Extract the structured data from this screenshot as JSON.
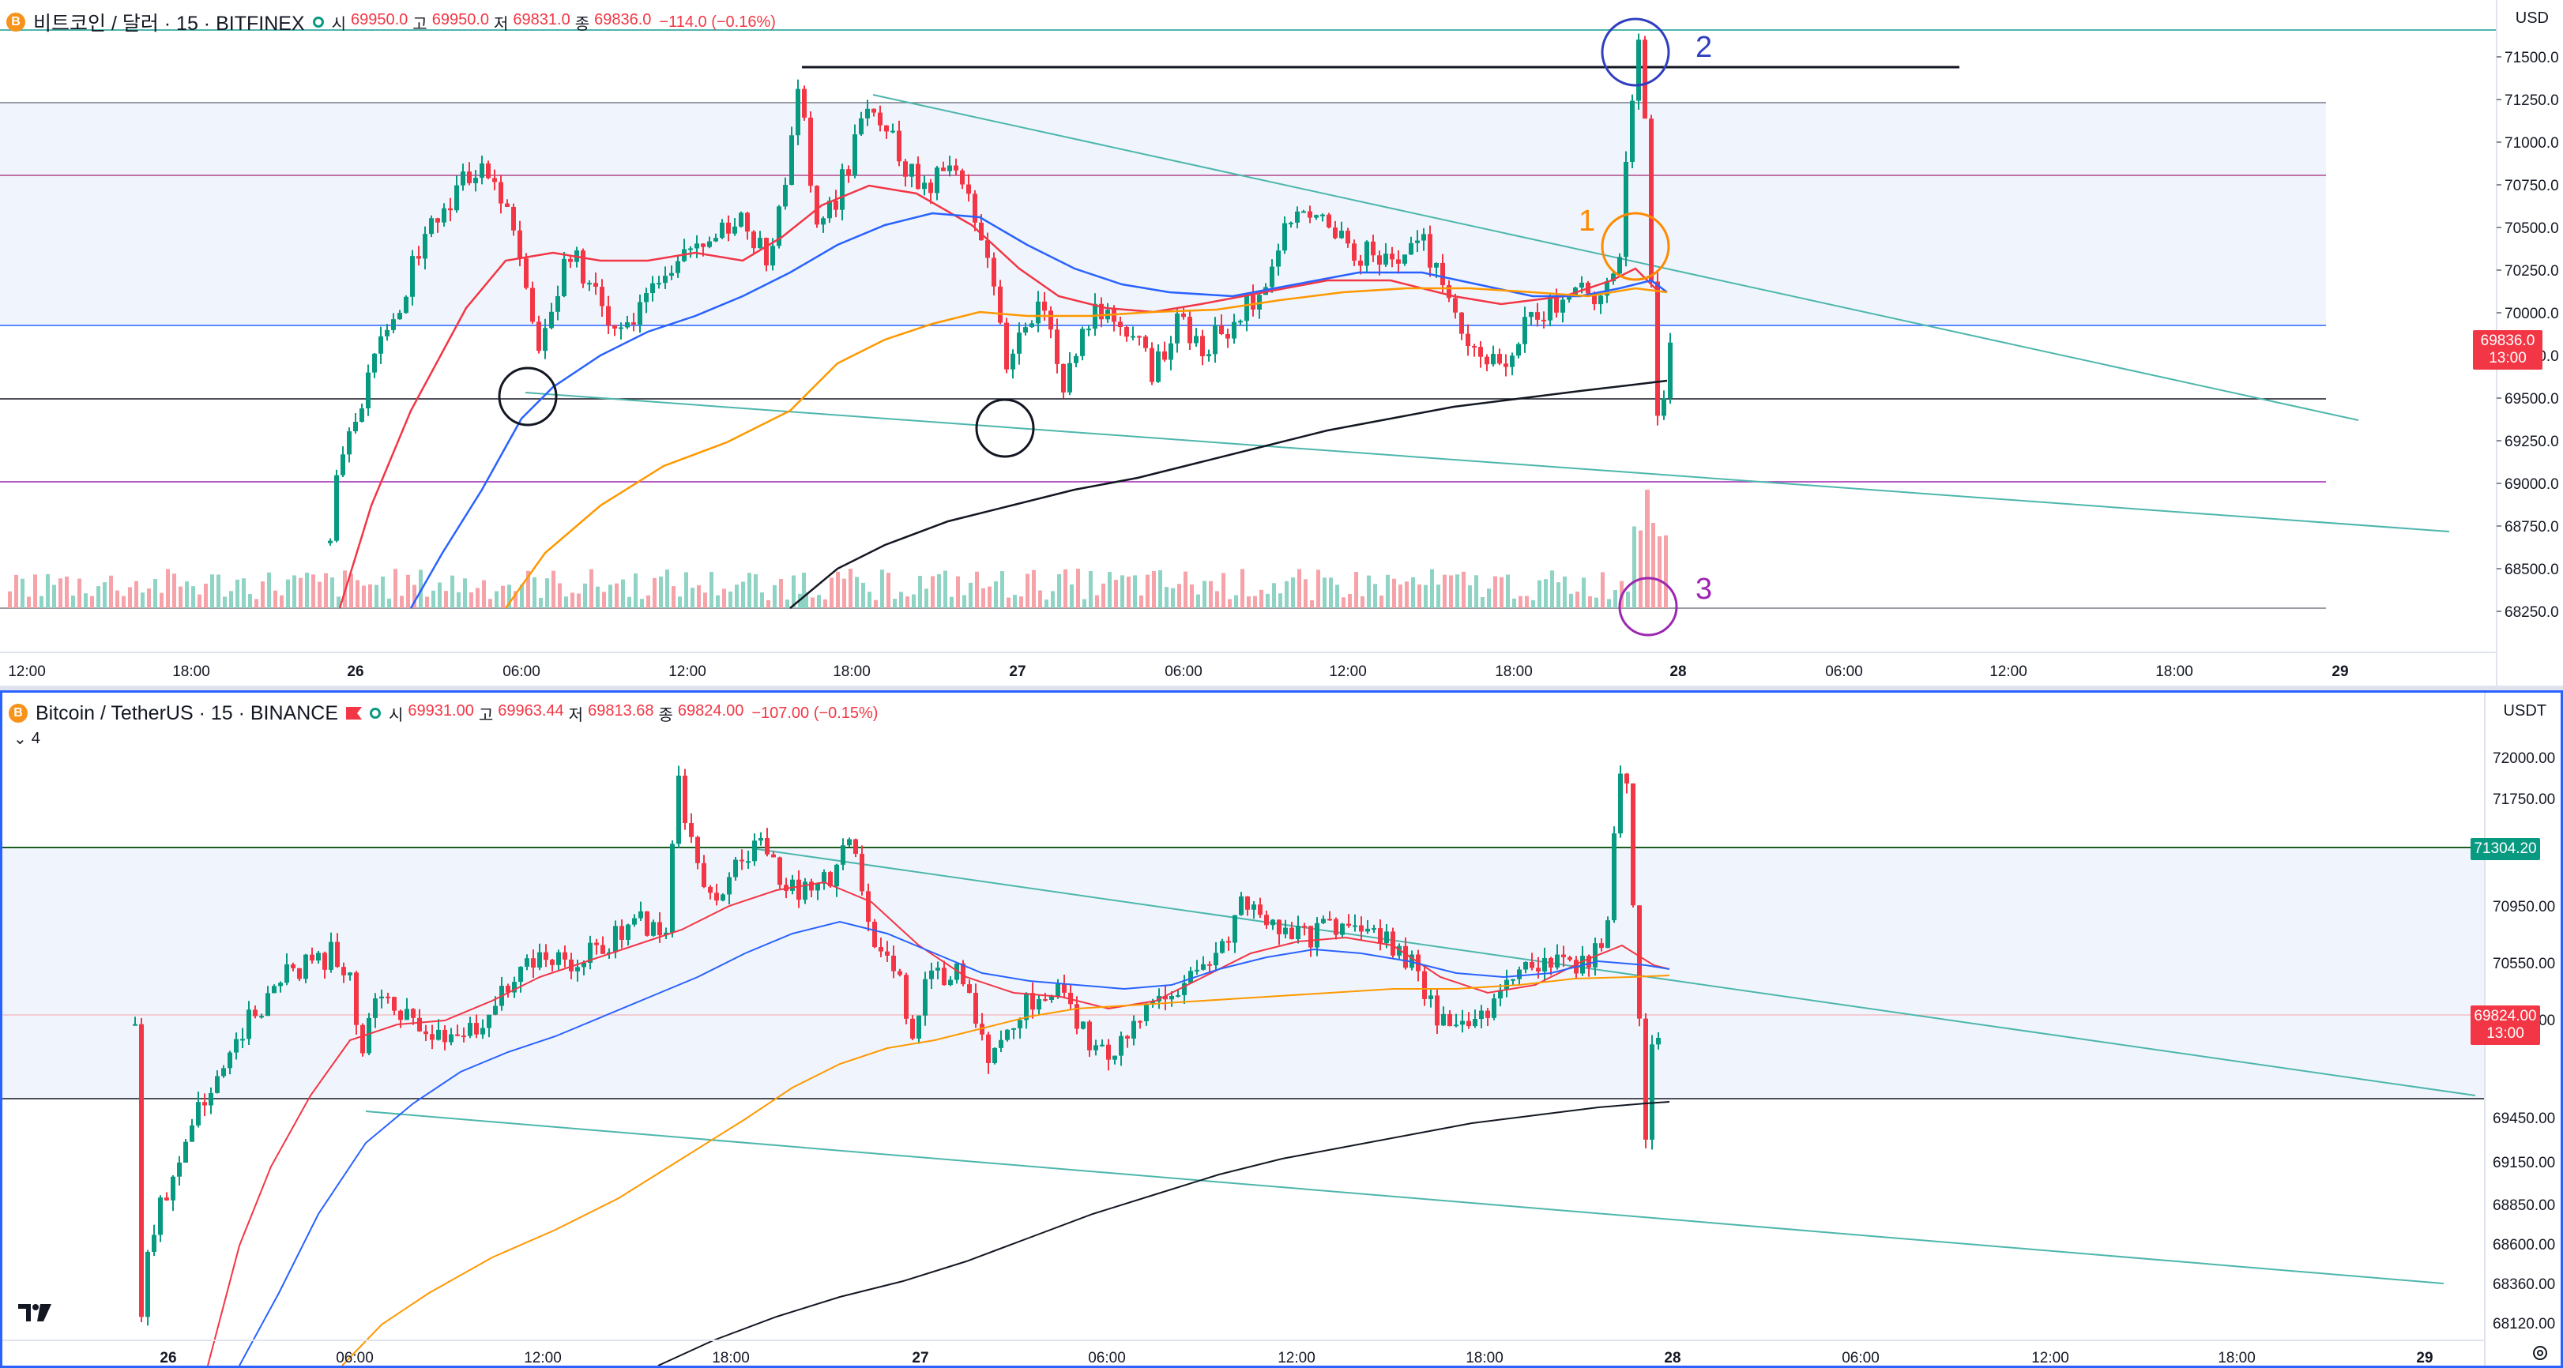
{
  "top": {
    "symbol": "비트코인 / 달러 · 15 · BITFINEX",
    "coin_icon_label": "B",
    "ohlc": {
      "open_label": "시",
      "open": "69950.0",
      "high_label": "고",
      "high": "69950.0",
      "low_label": "저",
      "low": "69831.0",
      "close_label": "종",
      "close": "69836.0"
    },
    "change": "−114.0 (−0.16%)",
    "currency": "USD",
    "last_price_tag": "69836.0",
    "last_price_countdown": "13:00",
    "price_ticks": [
      "71500.0",
      "71250.0",
      "71000.0",
      "70750.0",
      "70500.0",
      "70250.0",
      "70000.0",
      "69750.0",
      "69500.0",
      "69250.0",
      "69000.0",
      "68750.0",
      "68500.0",
      "68250.0"
    ],
    "time_ticks": [
      "12:00",
      "18:00",
      "26",
      "06:00",
      "12:00",
      "18:00",
      "27",
      "06:00",
      "12:00",
      "18:00",
      "28",
      "06:00",
      "12:00",
      "18:00",
      "29"
    ],
    "annotations": [
      "1",
      "2",
      "3"
    ],
    "colors": {
      "up": "#089981",
      "down": "#f23645",
      "ema20": "#f23645",
      "ema50": "#2962ff",
      "ema100": "#ff9800",
      "ema200": "#131722",
      "zone": "#e3edfb",
      "trend": "#4db6ac"
    }
  },
  "bottom": {
    "symbol": "Bitcoin / TetherUS · 15 · BINANCE",
    "coin_icon_label": "B",
    "indicator_count": "4",
    "ohlc": {
      "open_label": "시",
      "open": "69931.00",
      "high_label": "고",
      "high": "69963.44",
      "low_label": "저",
      "low": "69813.68",
      "close_label": "종",
      "close": "69824.00"
    },
    "change": "−107.00 (−0.15%)",
    "currency": "USDT",
    "level_tag": "71304.20",
    "last_price_tag": "69824.00",
    "last_price_countdown": "13:00",
    "price_ticks": [
      "72000.00",
      "71750.00",
      "70950.00",
      "70550.00",
      "70150.00",
      "69450.00",
      "69150.00",
      "68850.00",
      "68600.00",
      "68360.00",
      "68120.00"
    ],
    "time_ticks": [
      "26",
      "06:00",
      "12:00",
      "18:00",
      "27",
      "06:00",
      "12:00",
      "18:00",
      "28",
      "06:00",
      "12:00",
      "18:00",
      "29"
    ]
  }
}
